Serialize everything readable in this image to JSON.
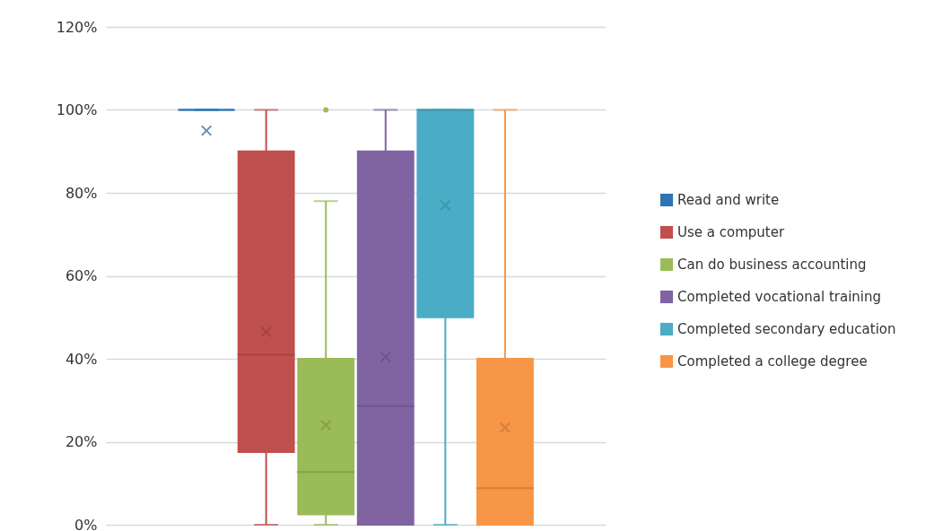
{
  "chart_data": {
    "type": "box",
    "categories": [
      null
    ],
    "ylim": [
      0,
      120
    ],
    "yticks": [
      {
        "value": 0,
        "label": "0%"
      },
      {
        "value": 20,
        "label": "20%"
      },
      {
        "value": 40,
        "label": "40%"
      },
      {
        "value": 60,
        "label": "60%"
      },
      {
        "value": 80,
        "label": "80%"
      },
      {
        "value": 100,
        "label": "100%"
      },
      {
        "value": 120,
        "label": "120%"
      }
    ],
    "grid": "y",
    "legend": "right",
    "tick_labels": "y",
    "series": [
      {
        "name": "Read and write",
        "color": "#2e75b6",
        "boxes": [
          {
            "low": 100,
            "q1": 100,
            "median": 100,
            "q3": 100,
            "high": 100,
            "mean": 95
          }
        ]
      },
      {
        "name": "Use a computer",
        "color": "#c0504d",
        "boxes": [
          {
            "low": 0,
            "q1": 17.5,
            "median": 41,
            "q3": 90,
            "high": 100,
            "mean": 46.5
          }
        ]
      },
      {
        "name": "Can do business accounting",
        "color": "#9bbb59",
        "boxes": [
          {
            "low": 0,
            "q1": 2.5,
            "median": 12.7,
            "q3": 40,
            "high": 78,
            "mean": 24,
            "outliers": [
              100
            ]
          }
        ]
      },
      {
        "name": "Completed vocational training",
        "color": "#8064a2",
        "boxes": [
          {
            "low": 0,
            "q1": 0,
            "median": 28.6,
            "q3": 90,
            "high": 100,
            "mean": 40.5
          }
        ]
      },
      {
        "name": "Completed secondary education",
        "color": "#4bacc6",
        "boxes": [
          {
            "low": 0,
            "q1": 50,
            "median": 100,
            "q3": 100,
            "high": 100,
            "mean": 77
          }
        ]
      },
      {
        "name": "Completed a college degree",
        "color": "#f79646",
        "boxes": [
          {
            "low": 0,
            "q1": 0,
            "median": 8.8,
            "q3": 40,
            "high": 100,
            "mean": 23.4
          }
        ]
      }
    ]
  }
}
